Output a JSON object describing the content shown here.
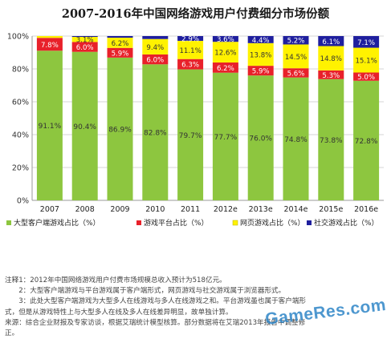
{
  "chart_data": {
    "type": "bar",
    "stacked": true,
    "title": "2007-2016年中国网络游戏用户付费细分市场份额",
    "categories": [
      "2007",
      "2008",
      "2009",
      "2010",
      "2011",
      "2012e",
      "2013e",
      "2014e",
      "2015e",
      "2016e"
    ],
    "ylim": [
      0,
      100
    ],
    "yticks": [
      "0%",
      "20%",
      "40%",
      "60%",
      "80%",
      "100%"
    ],
    "grid": true,
    "legend_position": "bottom",
    "series": [
      {
        "name": "大型客户端游戏占比（%）",
        "color": "#8dc63f",
        "values": [
          91.1,
          90.4,
          86.9,
          82.8,
          79.7,
          77.7,
          76.0,
          74.8,
          73.8,
          72.8
        ],
        "labels": [
          "91.1%",
          "90.4%",
          "86.9%",
          "82.8%",
          "79.7%",
          "77.7%",
          "76.0%",
          "74.8%",
          "73.8%",
          "72.8%"
        ]
      },
      {
        "name": "游戏平台占比（%）",
        "color": "#e8212a",
        "values": [
          7.8,
          6.0,
          5.9,
          6.0,
          6.3,
          6.2,
          5.9,
          5.6,
          5.3,
          5.0
        ],
        "labels": [
          "7.8%",
          "6.0%",
          "5.9%",
          "6.0%",
          "6.3%",
          "6.2%",
          "5.9%",
          "5.6%",
          "5.3%",
          "5.0%"
        ]
      },
      {
        "name": "网页游戏占比（%）",
        "color": "#fff200",
        "values": [
          1.1,
          3.1,
          6.2,
          9.4,
          11.1,
          12.6,
          13.8,
          14.5,
          14.8,
          15.1
        ],
        "labels": [
          "",
          "3.1%",
          "6.2%",
          "9.4%",
          "11.1%",
          "12.6%",
          "13.8%",
          "14.5%",
          "14.8%",
          "15.1%"
        ]
      },
      {
        "name": "社交游戏占比（%）",
        "color": "#1f1f9e",
        "values": [
          0,
          0.5,
          1.0,
          1.8,
          2.9,
          3.6,
          4.4,
          5.2,
          6.1,
          7.1
        ],
        "labels": [
          "",
          "",
          "",
          "",
          "2.9%",
          "3.6%",
          "4.4%",
          "5.2%",
          "6.1%",
          "7.1%"
        ]
      }
    ]
  },
  "notes": [
    "注释1：2012年中国网络游戏用户付费市场规模总收入预计为518亿元。",
    "　　2：大型客户端游戏与平台游戏属于客户端形式，网页游戏与社交游戏属于浏览器形式。",
    "　　3：此处大型客户端游戏为大型多人在线游戏与多人在线游戏之和。平台游戏虽也属于客户端形",
    "式，但是从游戏特性上与大型多人在线及多人在线差异明显，故单独计算。",
    "来源：综合企业财报及专家访谈，根据艾瑞统计模型核算。部分数据将在艾瑞2013年报告中调整修",
    "正。"
  ],
  "watermark": "GameRes.com"
}
